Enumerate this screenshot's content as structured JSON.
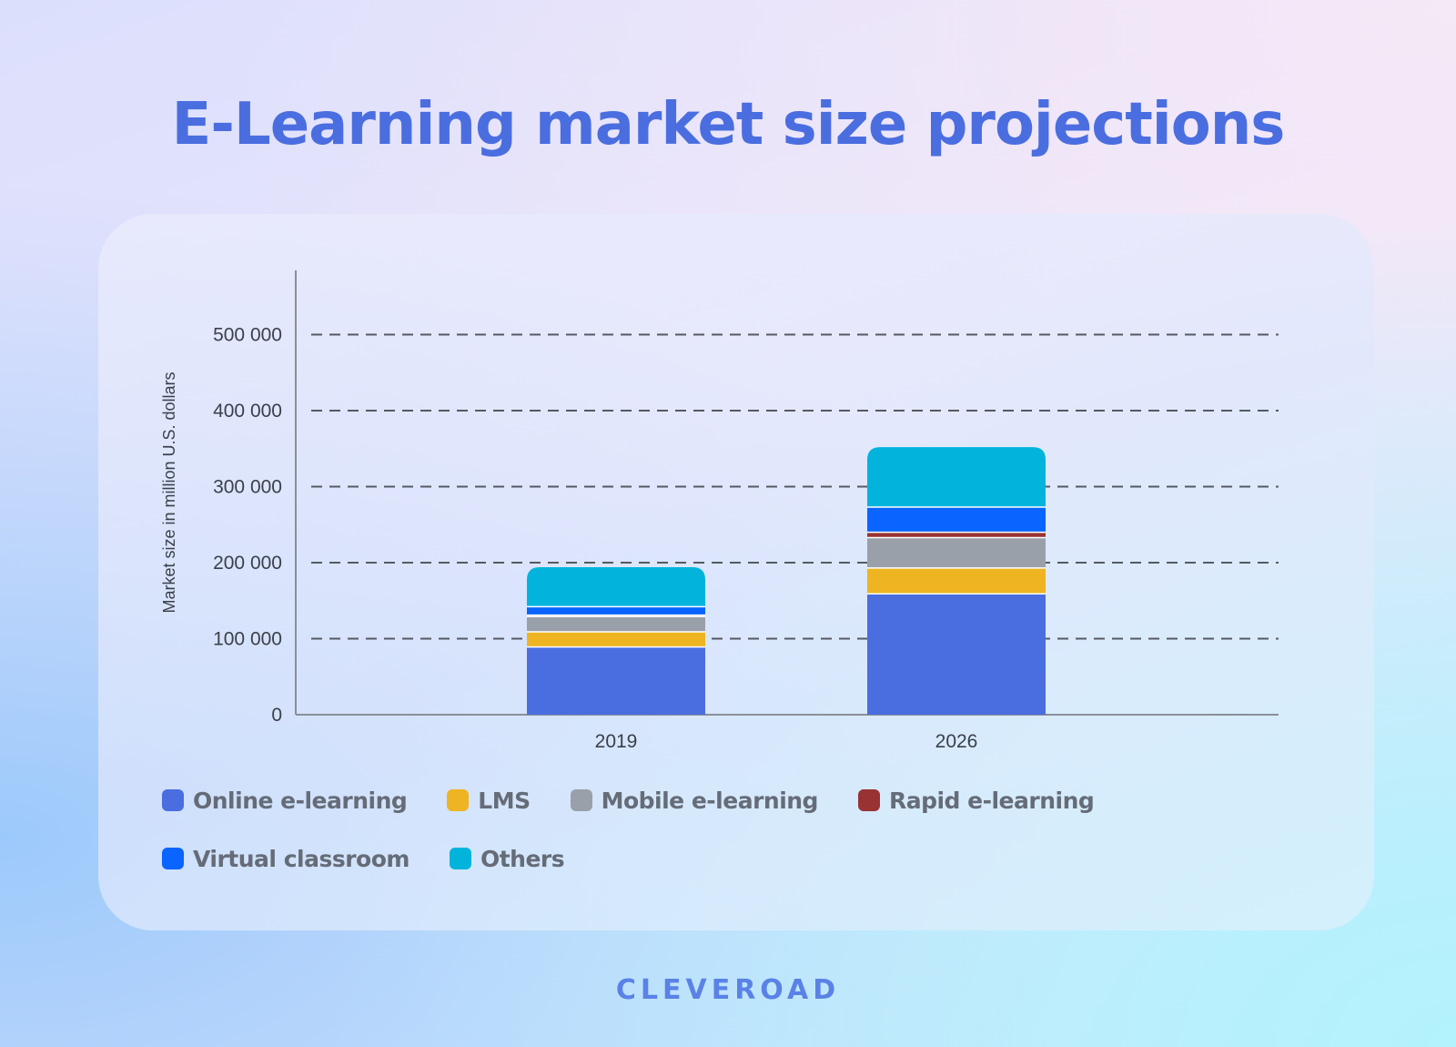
{
  "chart_data": {
    "type": "bar",
    "stacked": true,
    "title": "E-Learning market size projections",
    "ylabel": "Market size in million U.S. dollars",
    "xlabel": "",
    "categories": [
      "2019",
      "2026"
    ],
    "ylim": [
      0,
      580000
    ],
    "yticks": [
      0,
      100000,
      200000,
      300000,
      400000,
      500000
    ],
    "ytick_labels": [
      "0",
      "100 000",
      "200 000",
      "300 000",
      "400 000",
      "500 000"
    ],
    "grid": "horizontal-dashed",
    "legend_position": "bottom",
    "series": [
      {
        "name": "Online e-learning",
        "color": "#4a6ee0",
        "values": [
          89000,
          159000
        ]
      },
      {
        "name": "LMS",
        "color": "#eeb422",
        "values": [
          20000,
          34000
        ]
      },
      {
        "name": "Mobile e-learning",
        "color": "#9aa0aa",
        "values": [
          20000,
          40000
        ]
      },
      {
        "name": "Rapid e-learning",
        "color": "#993333",
        "values": [
          2000,
          7000
        ]
      },
      {
        "name": "Virtual classroom",
        "color": "#0a64ff",
        "values": [
          11000,
          33000
        ]
      },
      {
        "name": "Others",
        "color": "#02b4dc",
        "values": [
          52000,
          79000
        ]
      }
    ]
  },
  "brand": "CLEVEROAD"
}
